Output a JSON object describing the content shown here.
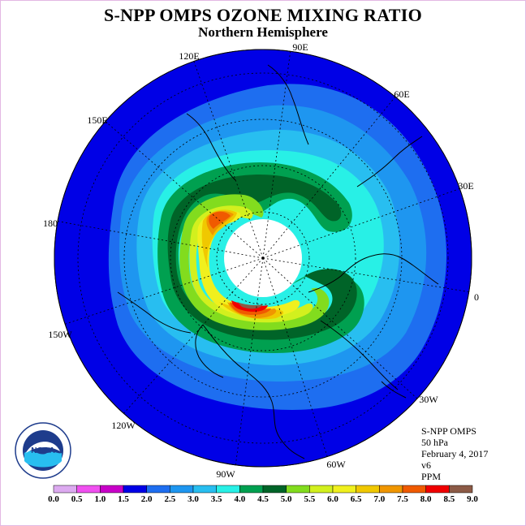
{
  "title": "S-NPP OMPS OZONE MIXING RATIO",
  "subtitle": "Northern Hemisphere",
  "longitude_labels": [
    "90E",
    "60E",
    "30E",
    "0",
    "30W",
    "60W",
    "90W",
    "120W",
    "150W",
    "180",
    "150E",
    "120E"
  ],
  "info": {
    "instrument": "S-NPP OMPS",
    "level": "50 hPa",
    "date": "February 4, 2017",
    "version": "v6",
    "units": "PPM"
  },
  "logo": {
    "text": "NOAA",
    "ring_text": "NATIONAL OCEANIC AND ATMOSPHERIC ADMINISTRATION · U.S. DEPARTMENT OF COMMERCE"
  },
  "colorbar": {
    "ticks": [
      "0.0",
      "0.5",
      "1.0",
      "1.5",
      "2.0",
      "2.5",
      "3.0",
      "3.5",
      "4.0",
      "4.5",
      "5.0",
      "5.5",
      "6.0",
      "6.5",
      "7.0",
      "7.5",
      "8.0",
      "8.5",
      "9.0"
    ],
    "colors": [
      "#b48cf0",
      "#dcaaf0",
      "#f050f0",
      "#c800c8",
      "#0000e6",
      "#1e6ef0",
      "#1e96f0",
      "#28bef0",
      "#28f0e6",
      "#00a050",
      "#006428",
      "#82dc1e",
      "#d2f01e",
      "#f0f01e",
      "#f0c800",
      "#f09600",
      "#f05a00",
      "#f00000",
      "#8c5a46"
    ]
  },
  "map_colors": {
    "background": "#1e6ef0",
    "outer_ocean": "#0000e6"
  }
}
